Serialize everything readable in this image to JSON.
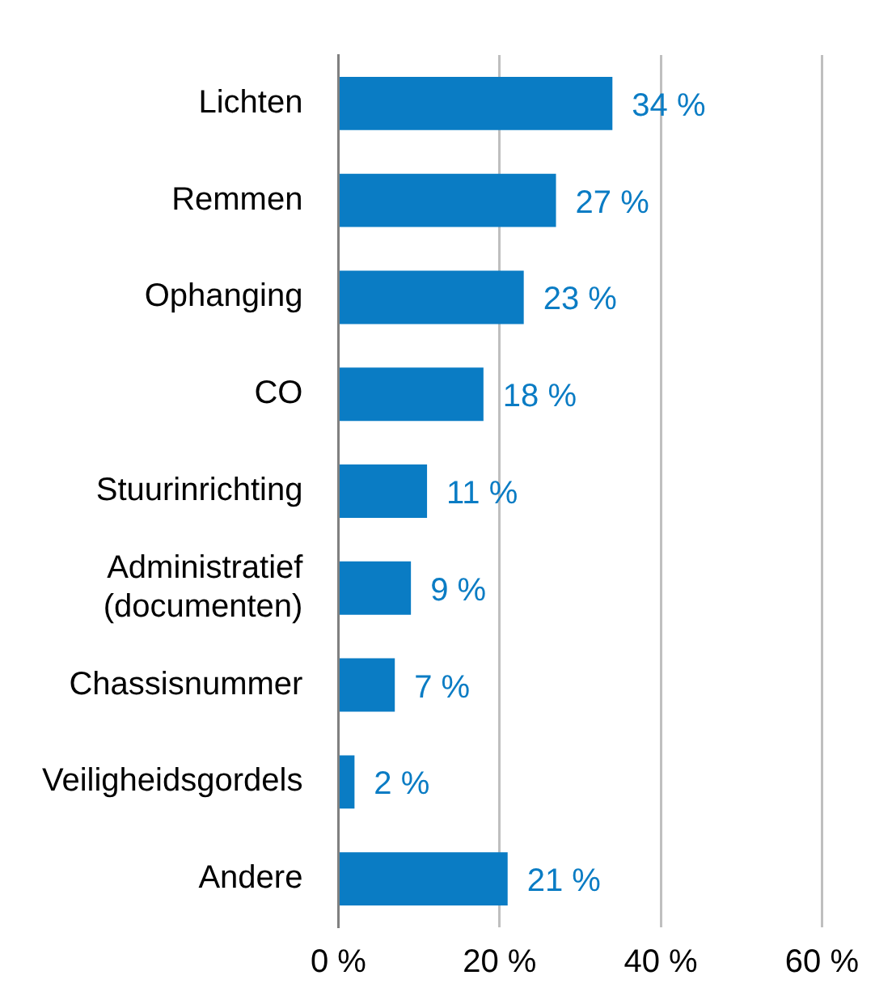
{
  "chart_data": {
    "type": "bar",
    "orientation": "horizontal",
    "categories": [
      "Lichten",
      "Remmen",
      "Ophanging",
      "CO",
      "Stuurinrichting",
      "Administratief\n(documenten)",
      "Chassisnummer",
      "Veiligheidsgordels",
      "Andere"
    ],
    "values": [
      34,
      27,
      23,
      18,
      11,
      9,
      7,
      2,
      21
    ],
    "value_labels": [
      "34 %",
      "27 %",
      "23 %",
      "18 %",
      "11 %",
      "9 %",
      "7 %",
      "2 %",
      "21 %"
    ],
    "color": "#0a7cc4",
    "xlim": [
      0,
      60
    ],
    "xticks": [
      {
        "value": 0,
        "label": "0 %"
      },
      {
        "value": 20,
        "label": "20 %"
      },
      {
        "value": 40,
        "label": "40 %"
      },
      {
        "value": 60,
        "label": "60 %"
      }
    ],
    "grid": "x",
    "legend": false
  }
}
